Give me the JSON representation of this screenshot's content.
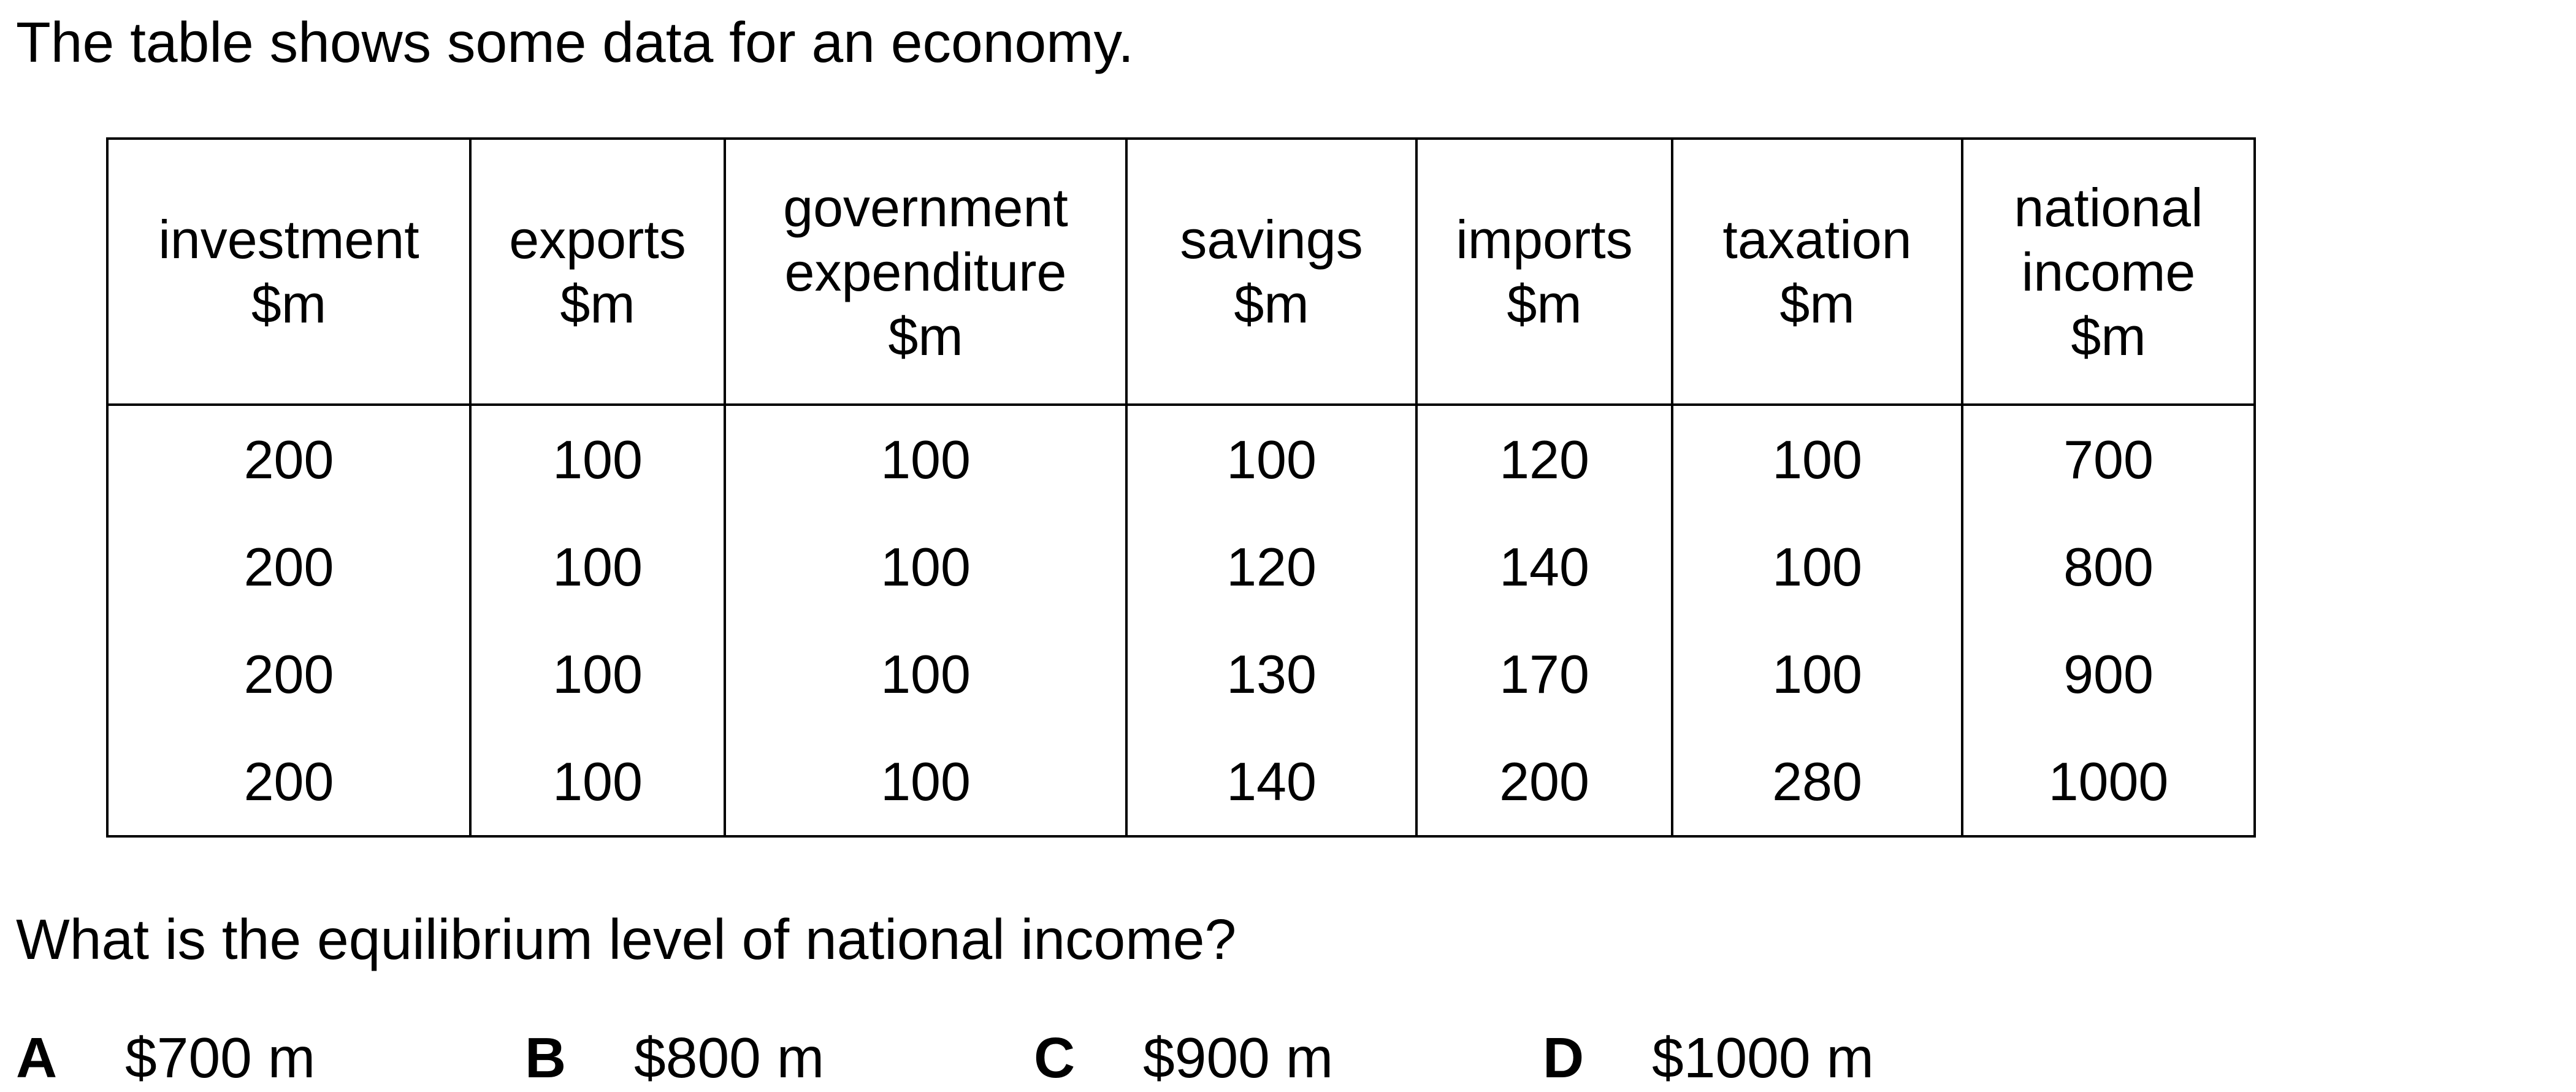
{
  "intro": "The table shows some data for an economy.",
  "table": {
    "headers": [
      [
        "investment",
        "$m"
      ],
      [
        "exports",
        "$m"
      ],
      [
        "government",
        "expenditure",
        "$m"
      ],
      [
        "savings",
        "$m"
      ],
      [
        "imports",
        "$m"
      ],
      [
        "taxation",
        "$m"
      ],
      [
        "national",
        "income",
        "$m"
      ]
    ],
    "rows": [
      [
        "200",
        "100",
        "100",
        "100",
        "120",
        "100",
        "700"
      ],
      [
        "200",
        "100",
        "100",
        "120",
        "140",
        "100",
        "800"
      ],
      [
        "200",
        "100",
        "100",
        "130",
        "170",
        "100",
        "900"
      ],
      [
        "200",
        "100",
        "100",
        "140",
        "200",
        "280",
        "1000"
      ]
    ]
  },
  "question": "What is the equilibrium level of national income?",
  "options": [
    {
      "letter": "A",
      "value": "$700 m"
    },
    {
      "letter": "B",
      "value": "$800 m"
    },
    {
      "letter": "C",
      "value": "$900 m"
    },
    {
      "letter": "D",
      "value": "$1000 m"
    }
  ]
}
